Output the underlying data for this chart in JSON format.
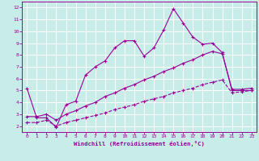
{
  "xlabel": "Windchill (Refroidissement éolien,°C)",
  "bg_color": "#c8ece8",
  "line_color": "#990099",
  "grid_color": "#ffffff",
  "xlim": [
    -0.5,
    23.5
  ],
  "ylim": [
    1.5,
    12.5
  ],
  "xticks": [
    0,
    1,
    2,
    3,
    4,
    5,
    6,
    7,
    8,
    9,
    10,
    11,
    12,
    13,
    14,
    15,
    16,
    17,
    18,
    19,
    20,
    21,
    22,
    23
  ],
  "yticks": [
    2,
    3,
    4,
    5,
    6,
    7,
    8,
    9,
    10,
    11,
    12
  ],
  "line1_x": [
    0,
    1,
    2,
    3,
    4,
    5,
    6,
    7,
    8,
    9,
    10,
    11,
    12,
    13,
    14,
    15,
    16,
    17,
    18,
    19,
    20,
    21,
    22,
    23
  ],
  "line1_y": [
    5.2,
    2.7,
    2.7,
    1.9,
    3.8,
    4.1,
    6.3,
    7.0,
    7.5,
    8.6,
    9.2,
    9.2,
    7.9,
    8.6,
    10.1,
    11.9,
    10.7,
    9.5,
    8.9,
    9.0,
    8.2,
    5.0,
    5.0,
    5.0
  ],
  "line2_x": [
    0,
    1,
    2,
    3,
    4,
    5,
    6,
    7,
    8,
    9,
    10,
    11,
    12,
    13,
    14,
    15,
    16,
    17,
    18,
    19,
    20,
    21,
    22,
    23
  ],
  "line2_y": [
    2.8,
    2.8,
    3.0,
    2.5,
    3.0,
    3.3,
    3.7,
    4.0,
    4.5,
    4.8,
    5.2,
    5.5,
    5.9,
    6.2,
    6.6,
    6.9,
    7.3,
    7.6,
    8.0,
    8.3,
    8.1,
    5.1,
    5.1,
    5.2
  ],
  "line3_x": [
    0,
    1,
    2,
    3,
    4,
    5,
    6,
    7,
    8,
    9,
    10,
    11,
    12,
    13,
    14,
    15,
    16,
    17,
    18,
    19,
    20,
    21,
    22,
    23
  ],
  "line3_y": [
    2.3,
    2.3,
    2.5,
    2.0,
    2.3,
    2.5,
    2.7,
    2.9,
    3.1,
    3.4,
    3.6,
    3.8,
    4.1,
    4.3,
    4.5,
    4.8,
    5.0,
    5.2,
    5.5,
    5.7,
    5.9,
    4.8,
    4.9,
    5.0
  ]
}
